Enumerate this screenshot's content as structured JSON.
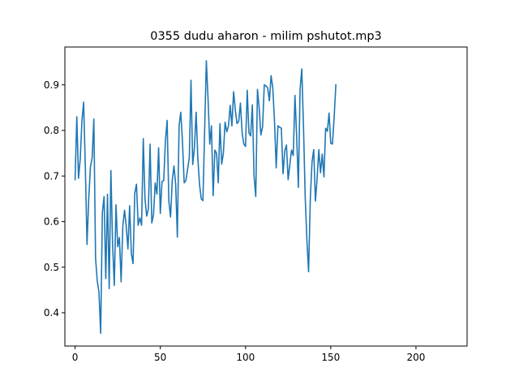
{
  "chart_data": {
    "type": "line",
    "title": "0355 dudu aharon - milim pshutot.mp3",
    "xlabel": "",
    "ylabel": "",
    "xlim": [
      -6,
      230
    ],
    "ylim": [
      0.327,
      0.983
    ],
    "grid": false,
    "xticks": [
      0,
      50,
      100,
      150,
      200
    ],
    "xtick_labels": [
      "0",
      "50",
      "100",
      "150",
      "200"
    ],
    "yticks": [
      0.4,
      0.5,
      0.6,
      0.7,
      0.8,
      0.9
    ],
    "ytick_labels": [
      "0.4",
      "0.5",
      "0.6",
      "0.7",
      "0.8",
      "0.9"
    ],
    "line_color": "#1f77b4",
    "series": [
      {
        "values": [
          0.692,
          0.83,
          0.695,
          0.737,
          0.82,
          0.862,
          0.72,
          0.55,
          0.65,
          0.72,
          0.74,
          0.825,
          0.52,
          0.47,
          0.445,
          0.355,
          0.62,
          0.655,
          0.475,
          0.66,
          0.453,
          0.712,
          0.55,
          0.46,
          0.637,
          0.545,
          0.565,
          0.468,
          0.59,
          0.625,
          0.59,
          0.54,
          0.635,
          0.53,
          0.508,
          0.662,
          0.682,
          0.592,
          0.608,
          0.592,
          0.782,
          0.65,
          0.612,
          0.628,
          0.77,
          0.597,
          0.615,
          0.685,
          0.66,
          0.762,
          0.618,
          0.688,
          0.69,
          0.778,
          0.822,
          0.645,
          0.61,
          0.69,
          0.722,
          0.682,
          0.566,
          0.81,
          0.84,
          0.775,
          0.685,
          0.69,
          0.715,
          0.74,
          0.91,
          0.725,
          0.762,
          0.84,
          0.74,
          0.682,
          0.65,
          0.646,
          0.8,
          0.953,
          0.87,
          0.77,
          0.81,
          0.657,
          0.757,
          0.75,
          0.685,
          0.815,
          0.726,
          0.75,
          0.818,
          0.797,
          0.81,
          0.855,
          0.81,
          0.885,
          0.845,
          0.815,
          0.82,
          0.86,
          0.795,
          0.77,
          0.765,
          0.888,
          0.795,
          0.788,
          0.856,
          0.7,
          0.655,
          0.89,
          0.85,
          0.79,
          0.808,
          0.9,
          0.898,
          0.893,
          0.865,
          0.92,
          0.893,
          0.82,
          0.718,
          0.81,
          0.807,
          0.805,
          0.705,
          0.755,
          0.768,
          0.692,
          0.725,
          0.757,
          0.745,
          0.877,
          0.787,
          0.675,
          0.89,
          0.935,
          0.81,
          0.655,
          0.56,
          0.49,
          0.65,
          0.73,
          0.758,
          0.645,
          0.695,
          0.758,
          0.707,
          0.748,
          0.698,
          0.805,
          0.798,
          0.838,
          0.772,
          0.77,
          0.83,
          0.9
        ]
      }
    ]
  }
}
